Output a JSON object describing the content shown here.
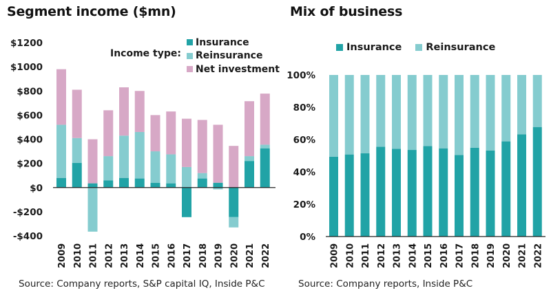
{
  "colors": {
    "insurance": "#21a3a6",
    "reinsurance": "#85cccf",
    "net_investment": "#d7a8c6",
    "axis": "#222222"
  },
  "chart_data": [
    {
      "type": "bar",
      "stacked": true,
      "title": "Segment income ($mn)",
      "xlabel": "",
      "ylabel": "",
      "ylim": [
        -400,
        1200
      ],
      "yticks": [
        -400,
        -200,
        0,
        200,
        400,
        600,
        800,
        1000,
        1200
      ],
      "ytick_labels": [
        "-$400",
        "-$200",
        "$0",
        "$200",
        "$400",
        "$600",
        "$800",
        "$1000",
        "$1200"
      ],
      "grid": false,
      "legend_title": "Income type:",
      "legend_position": "top-right",
      "categories": [
        "2009",
        "2010",
        "2011",
        "2012",
        "2013",
        "2014",
        "2015",
        "2016",
        "2017",
        "2018",
        "2019",
        "2020",
        "2021",
        "2022"
      ],
      "series": [
        {
          "name": "Insurance",
          "color_key": "insurance",
          "values": [
            80,
            205,
            35,
            60,
            80,
            75,
            40,
            35,
            -245,
            75,
            40,
            -245,
            220,
            325
          ]
        },
        {
          "name": "Reinsurance",
          "color_key": "reinsurance",
          "values": [
            440,
            205,
            -365,
            200,
            350,
            385,
            260,
            240,
            170,
            45,
            -15,
            -85,
            40,
            30
          ]
        },
        {
          "name": "Net investment",
          "color_key": "net_investment",
          "values": [
            460,
            400,
            365,
            380,
            400,
            340,
            300,
            355,
            400,
            440,
            480,
            345,
            455,
            423
          ]
        }
      ],
      "source": "Source: Company reports, S&P capital IQ, Inside P&C"
    },
    {
      "type": "bar",
      "stacked": true,
      "percent": true,
      "title": "Mix of business",
      "xlabel": "",
      "ylabel": "",
      "ylim": [
        0,
        100
      ],
      "yticks": [
        0,
        20,
        40,
        60,
        80,
        100
      ],
      "ytick_labels": [
        "0%",
        "20%",
        "40%",
        "60%",
        "80%",
        "100%"
      ],
      "grid": false,
      "legend_position": "top",
      "categories": [
        "2009",
        "2010",
        "2011",
        "2012",
        "2013",
        "2014",
        "2015",
        "2016",
        "2017",
        "2018",
        "2019",
        "2020",
        "2021",
        "2022"
      ],
      "series": [
        {
          "name": "Insurance",
          "color_key": "insurance",
          "values": [
            49.4,
            50.8,
            51.5,
            55.6,
            54.3,
            53.6,
            56.0,
            54.6,
            50.5,
            55.0,
            53.3,
            58.9,
            63.3,
            67.8
          ]
        },
        {
          "name": "Reinsurance",
          "color_key": "reinsurance",
          "values": [
            50.6,
            49.2,
            48.5,
            44.4,
            45.7,
            46.4,
            44.0,
            45.4,
            49.5,
            45.0,
            46.7,
            41.1,
            36.7,
            32.2
          ]
        }
      ],
      "source": "Source: Company reports, Inside P&C"
    }
  ]
}
